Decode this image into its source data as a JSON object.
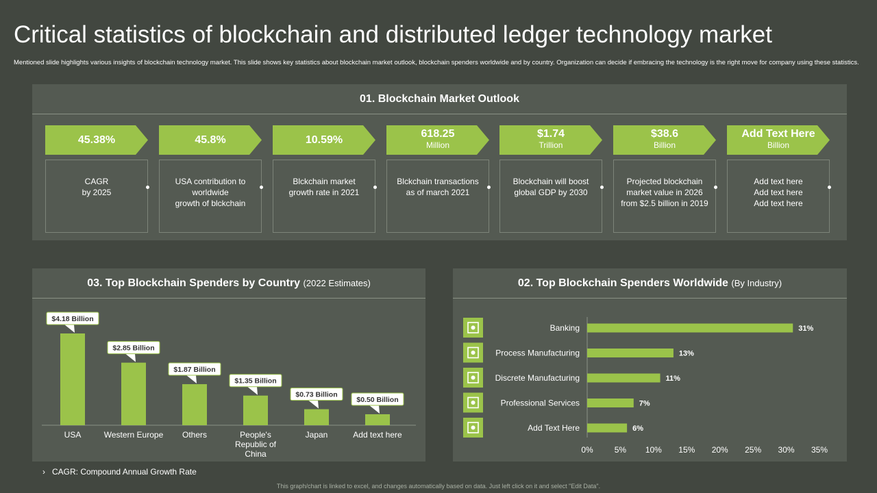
{
  "title": "Critical statistics of blockchain and distributed ledger technology market",
  "subtitle": "Mentioned slide highlights various insights of blockchain technology market. This slide shows key statistics about blockchain market outlook, blockchain spenders worldwide and by country. Organization can decide if embracing the technology is the right move for company using these statistics.",
  "outlook": {
    "heading": "01. Blockchain Market Outlook",
    "cards": [
      {
        "value": "45.38%",
        "unit": "",
        "text": "CAGR\nby 2025"
      },
      {
        "value": "45.8%",
        "unit": "",
        "text": "USA contribution to worldwide\ngrowth of blckchain"
      },
      {
        "value": "10.59%",
        "unit": "",
        "text": "Blckchain market growth rate in 2021"
      },
      {
        "value": "618.25",
        "unit": "Million",
        "text": "Blckchain transactions as of march 2021"
      },
      {
        "value": "$1.74",
        "unit": "Trillion",
        "text": "Blockchain will boost global GDP by 2030"
      },
      {
        "value": "$38.6",
        "unit": "Billion",
        "text": "Projected blockchain market value in 2026 from $2.5 billion in 2019"
      },
      {
        "value": "Add Text Here",
        "unit": "Billion",
        "text": "Add text here\nAdd text here\nAdd text here"
      }
    ]
  },
  "country": {
    "heading": "03. Top Blockchain Spenders by Country",
    "heading_note": "(2022 Estimates)"
  },
  "industry": {
    "heading": "02. Top Blockchain Spenders Worldwide",
    "heading_note": "(By Industry)",
    "icons": [
      "network-icon",
      "hand-gear-icon",
      "gear-icon",
      "people-gear-icon",
      "factory-icon"
    ]
  },
  "footnote": "CAGR: Compound Annual Growth Rate",
  "footnote_bullet": "›",
  "bottom_note": "This graph/chart is linked to excel, and changes automatically based on data. Just left click on it and select \"Edit Data\".",
  "colors": {
    "background": "#424740",
    "panel": "#545a52",
    "accent": "#9bc34a"
  },
  "chart_data": [
    {
      "type": "bar",
      "orientation": "vertical",
      "categories": [
        "USA",
        "Western Europe",
        "Others",
        "People's Republic of China",
        "Japan",
        "Add text here"
      ],
      "values": [
        4.18,
        2.85,
        1.87,
        1.35,
        0.73,
        0.5
      ],
      "data_labels": [
        "$4.18 Billion",
        "$2.85 Billion",
        "$1.87 Billion",
        "$1.35 Billion",
        "$0.73 Billion",
        "$0.50 Billion"
      ],
      "ylim": [
        0,
        4.5
      ]
    },
    {
      "type": "bar",
      "orientation": "horizontal",
      "categories": [
        "Banking",
        "Process Manufacturing",
        "Discrete Manufacturing",
        "Professional Services",
        "Add Text Here"
      ],
      "values": [
        31,
        13,
        11,
        7,
        6
      ],
      "data_labels": [
        "31%",
        "13%",
        "11%",
        "7%",
        "6%"
      ],
      "xticks": [
        "0%",
        "5%",
        "10%",
        "15%",
        "20%",
        "25%",
        "30%",
        "35%"
      ],
      "xlim": [
        0,
        35
      ]
    }
  ]
}
